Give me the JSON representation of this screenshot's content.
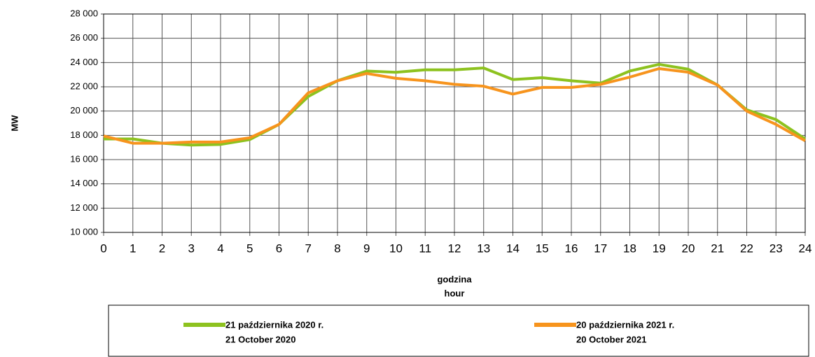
{
  "chart_data": {
    "type": "line",
    "ylabel": "MW",
    "xlabel": "godzina",
    "xlabel_en": "hour",
    "x": [
      0,
      1,
      2,
      3,
      4,
      5,
      6,
      7,
      8,
      9,
      10,
      11,
      12,
      13,
      14,
      15,
      16,
      17,
      18,
      19,
      20,
      21,
      22,
      23,
      24
    ],
    "xlim": [
      0,
      24
    ],
    "xticks": [
      0,
      1,
      2,
      3,
      4,
      5,
      6,
      7,
      8,
      9,
      10,
      11,
      12,
      13,
      14,
      15,
      16,
      17,
      18,
      19,
      20,
      21,
      22,
      23,
      24
    ],
    "ylim": [
      10000,
      28000
    ],
    "yticks": [
      {
        "value": 10000,
        "label": "10 000"
      },
      {
        "value": 12000,
        "label": "12 000"
      },
      {
        "value": 14000,
        "label": "14 000"
      },
      {
        "value": 16000,
        "label": "16 000"
      },
      {
        "value": 18000,
        "label": "18 000"
      },
      {
        "value": 20000,
        "label": "20 000"
      },
      {
        "value": 22000,
        "label": "22 000"
      },
      {
        "value": 24000,
        "label": "24 000"
      },
      {
        "value": 26000,
        "label": "26 000"
      },
      {
        "value": 28000,
        "label": "28 000"
      }
    ],
    "grid": true,
    "legend": "bottom",
    "series": [
      {
        "name": "21 października  2020 r.",
        "name_en": "21 October  2020",
        "color": "#8dc21f",
        "values": [
          17700,
          17700,
          17350,
          17200,
          17250,
          17650,
          18900,
          21200,
          22500,
          23300,
          23200,
          23400,
          23400,
          23550,
          22600,
          22750,
          22500,
          22300,
          23300,
          23850,
          23450,
          22150,
          20100,
          19300,
          17700
        ]
      },
      {
        "name": "20  października  2021 r.",
        "name_en": "20 October  2021",
        "color": "#f7941d",
        "values": [
          17950,
          17350,
          17350,
          17450,
          17450,
          17800,
          18900,
          21500,
          22500,
          23100,
          22700,
          22500,
          22200,
          22050,
          21400,
          21950,
          21950,
          22200,
          22800,
          23500,
          23200,
          22150,
          20000,
          18900,
          17550
        ]
      }
    ]
  }
}
